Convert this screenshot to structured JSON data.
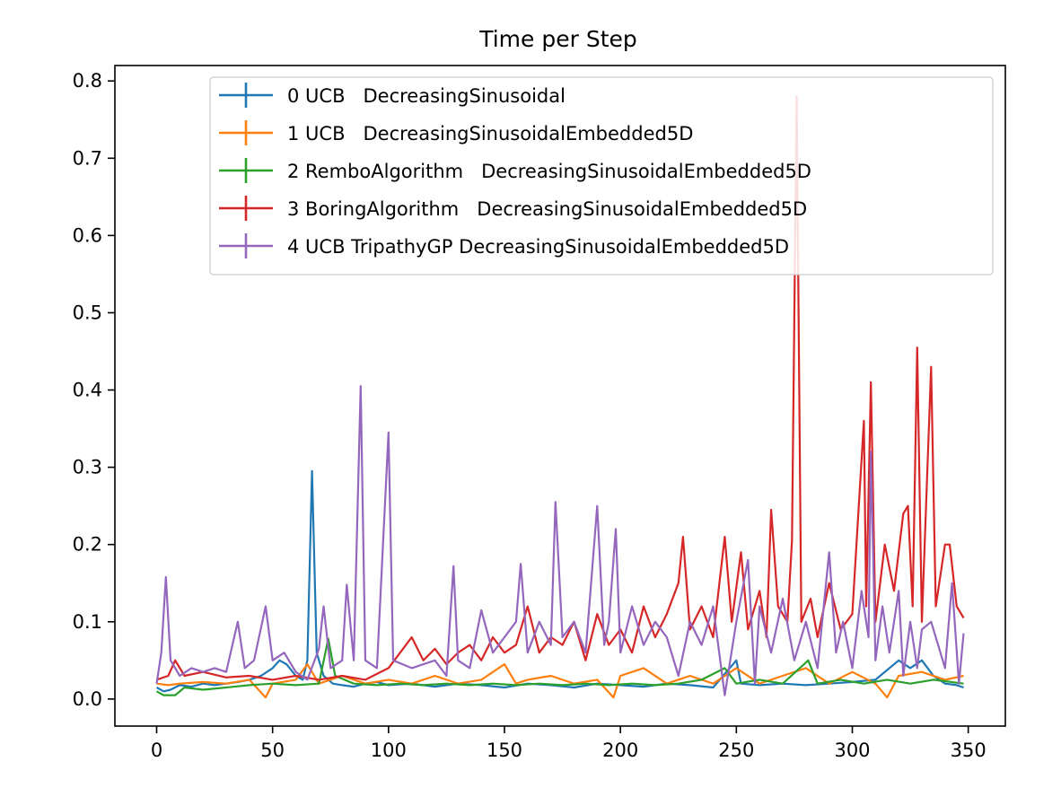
{
  "chart_data": {
    "type": "line",
    "title": "Time per Step",
    "xlabel": "",
    "ylabel": "",
    "xlim": [
      -18,
      366
    ],
    "ylim": [
      -0.035,
      0.82
    ],
    "xticks": [
      "0",
      "50",
      "100",
      "150",
      "200",
      "250",
      "300",
      "350"
    ],
    "xtick_values": [
      0,
      50,
      100,
      150,
      200,
      250,
      300,
      350
    ],
    "yticks": [
      "0.0",
      "0.1",
      "0.2",
      "0.3",
      "0.4",
      "0.5",
      "0.6",
      "0.7",
      "0.8"
    ],
    "ytick_values": [
      0.0,
      0.1,
      0.2,
      0.3,
      0.4,
      0.5,
      0.6,
      0.7,
      0.8
    ],
    "grid": false,
    "legend_position": "top-center",
    "series": [
      {
        "name": "0 UCB   DecreasingSinusoidal",
        "color": "#1f77b4",
        "points": [
          [
            0,
            0.015
          ],
          [
            3,
            0.01
          ],
          [
            6,
            0.012
          ],
          [
            10,
            0.018
          ],
          [
            15,
            0.016
          ],
          [
            20,
            0.02
          ],
          [
            25,
            0.018
          ],
          [
            30,
            0.02
          ],
          [
            35,
            0.022
          ],
          [
            40,
            0.025
          ],
          [
            45,
            0.03
          ],
          [
            50,
            0.04
          ],
          [
            53,
            0.05
          ],
          [
            56,
            0.045
          ],
          [
            60,
            0.03
          ],
          [
            63,
            0.025
          ],
          [
            65,
            0.05
          ],
          [
            67,
            0.295
          ],
          [
            69,
            0.06
          ],
          [
            72,
            0.03
          ],
          [
            76,
            0.02
          ],
          [
            80,
            0.018
          ],
          [
            85,
            0.016
          ],
          [
            90,
            0.02
          ],
          [
            95,
            0.022
          ],
          [
            100,
            0.018
          ],
          [
            110,
            0.02
          ],
          [
            120,
            0.016
          ],
          [
            130,
            0.02
          ],
          [
            140,
            0.018
          ],
          [
            150,
            0.015
          ],
          [
            160,
            0.02
          ],
          [
            170,
            0.018
          ],
          [
            180,
            0.015
          ],
          [
            190,
            0.02
          ],
          [
            200,
            0.018
          ],
          [
            210,
            0.016
          ],
          [
            220,
            0.02
          ],
          [
            230,
            0.018
          ],
          [
            240,
            0.015
          ],
          [
            250,
            0.05
          ],
          [
            252,
            0.02
          ],
          [
            260,
            0.018
          ],
          [
            270,
            0.02
          ],
          [
            280,
            0.018
          ],
          [
            290,
            0.02
          ],
          [
            300,
            0.022
          ],
          [
            310,
            0.025
          ],
          [
            320,
            0.05
          ],
          [
            325,
            0.04
          ],
          [
            330,
            0.05
          ],
          [
            335,
            0.03
          ],
          [
            340,
            0.02
          ],
          [
            345,
            0.018
          ],
          [
            348,
            0.015
          ]
        ]
      },
      {
        "name": "1 UCB   DecreasingSinusoidalEmbedded5D",
        "color": "#ff7f0e",
        "points": [
          [
            0,
            0.02
          ],
          [
            5,
            0.018
          ],
          [
            10,
            0.02
          ],
          [
            20,
            0.022
          ],
          [
            30,
            0.02
          ],
          [
            40,
            0.025
          ],
          [
            47,
            0.002
          ],
          [
            50,
            0.02
          ],
          [
            60,
            0.025
          ],
          [
            65,
            0.045
          ],
          [
            70,
            0.02
          ],
          [
            80,
            0.03
          ],
          [
            90,
            0.02
          ],
          [
            100,
            0.025
          ],
          [
            110,
            0.02
          ],
          [
            120,
            0.03
          ],
          [
            130,
            0.02
          ],
          [
            140,
            0.025
          ],
          [
            150,
            0.045
          ],
          [
            155,
            0.02
          ],
          [
            160,
            0.025
          ],
          [
            170,
            0.03
          ],
          [
            180,
            0.02
          ],
          [
            190,
            0.025
          ],
          [
            197,
            0.002
          ],
          [
            200,
            0.03
          ],
          [
            210,
            0.04
          ],
          [
            220,
            0.02
          ],
          [
            230,
            0.03
          ],
          [
            240,
            0.02
          ],
          [
            250,
            0.04
          ],
          [
            260,
            0.02
          ],
          [
            270,
            0.03
          ],
          [
            280,
            0.04
          ],
          [
            290,
            0.02
          ],
          [
            300,
            0.035
          ],
          [
            310,
            0.02
          ],
          [
            315,
            0.002
          ],
          [
            320,
            0.03
          ],
          [
            330,
            0.035
          ],
          [
            340,
            0.025
          ],
          [
            348,
            0.03
          ]
        ]
      },
      {
        "name": "2 RemboAlgorithm   DecreasingSinusoidalEmbedded5D",
        "color": "#2ca02c",
        "points": [
          [
            0,
            0.01
          ],
          [
            3,
            0.005
          ],
          [
            8,
            0.005
          ],
          [
            12,
            0.015
          ],
          [
            20,
            0.012
          ],
          [
            30,
            0.015
          ],
          [
            40,
            0.018
          ],
          [
            50,
            0.02
          ],
          [
            60,
            0.018
          ],
          [
            70,
            0.02
          ],
          [
            74,
            0.078
          ],
          [
            77,
            0.03
          ],
          [
            85,
            0.02
          ],
          [
            95,
            0.018
          ],
          [
            105,
            0.02
          ],
          [
            115,
            0.018
          ],
          [
            125,
            0.02
          ],
          [
            135,
            0.018
          ],
          [
            145,
            0.02
          ],
          [
            155,
            0.018
          ],
          [
            165,
            0.02
          ],
          [
            175,
            0.018
          ],
          [
            185,
            0.02
          ],
          [
            195,
            0.018
          ],
          [
            205,
            0.02
          ],
          [
            215,
            0.018
          ],
          [
            225,
            0.02
          ],
          [
            235,
            0.025
          ],
          [
            245,
            0.04
          ],
          [
            250,
            0.02
          ],
          [
            260,
            0.025
          ],
          [
            270,
            0.02
          ],
          [
            281,
            0.05
          ],
          [
            285,
            0.02
          ],
          [
            295,
            0.025
          ],
          [
            305,
            0.02
          ],
          [
            315,
            0.025
          ],
          [
            325,
            0.02
          ],
          [
            335,
            0.025
          ],
          [
            348,
            0.02
          ]
        ]
      },
      {
        "name": "3 BoringAlgorithm   DecreasingSinusoidalEmbedded5D",
        "color": "#d62728",
        "points": [
          [
            0,
            0.025
          ],
          [
            5,
            0.03
          ],
          [
            8,
            0.05
          ],
          [
            12,
            0.03
          ],
          [
            20,
            0.035
          ],
          [
            30,
            0.028
          ],
          [
            40,
            0.03
          ],
          [
            50,
            0.025
          ],
          [
            60,
            0.03
          ],
          [
            70,
            0.025
          ],
          [
            80,
            0.03
          ],
          [
            90,
            0.025
          ],
          [
            100,
            0.04
          ],
          [
            105,
            0.06
          ],
          [
            110,
            0.08
          ],
          [
            115,
            0.05
          ],
          [
            120,
            0.065
          ],
          [
            125,
            0.045
          ],
          [
            130,
            0.06
          ],
          [
            135,
            0.07
          ],
          [
            140,
            0.05
          ],
          [
            145,
            0.08
          ],
          [
            150,
            0.06
          ],
          [
            155,
            0.07
          ],
          [
            160,
            0.12
          ],
          [
            165,
            0.06
          ],
          [
            170,
            0.08
          ],
          [
            175,
            0.07
          ],
          [
            180,
            0.1
          ],
          [
            185,
            0.05
          ],
          [
            190,
            0.11
          ],
          [
            195,
            0.07
          ],
          [
            200,
            0.09
          ],
          [
            205,
            0.06
          ],
          [
            210,
            0.12
          ],
          [
            215,
            0.08
          ],
          [
            220,
            0.11
          ],
          [
            225,
            0.15
          ],
          [
            227,
            0.21
          ],
          [
            230,
            0.09
          ],
          [
            235,
            0.12
          ],
          [
            240,
            0.08
          ],
          [
            245,
            0.21
          ],
          [
            248,
            0.1
          ],
          [
            252,
            0.19
          ],
          [
            255,
            0.09
          ],
          [
            260,
            0.14
          ],
          [
            263,
            0.08
          ],
          [
            265,
            0.245
          ],
          [
            268,
            0.12
          ],
          [
            272,
            0.1
          ],
          [
            274,
            0.205
          ],
          [
            276,
            0.78
          ],
          [
            278,
            0.1
          ],
          [
            282,
            0.13
          ],
          [
            285,
            0.08
          ],
          [
            290,
            0.15
          ],
          [
            295,
            0.09
          ],
          [
            300,
            0.11
          ],
          [
            305,
            0.36
          ],
          [
            306,
            0.12
          ],
          [
            308,
            0.41
          ],
          [
            310,
            0.1
          ],
          [
            314,
            0.2
          ],
          [
            318,
            0.14
          ],
          [
            322,
            0.24
          ],
          [
            324,
            0.25
          ],
          [
            326,
            0.12
          ],
          [
            328,
            0.455
          ],
          [
            330,
            0.1
          ],
          [
            334,
            0.43
          ],
          [
            336,
            0.12
          ],
          [
            340,
            0.2
          ],
          [
            342,
            0.2
          ],
          [
            345,
            0.12
          ],
          [
            348,
            0.105
          ]
        ]
      },
      {
        "name": "4 UCB TripathyGP DecreasingSinusoidalEmbedded5D",
        "color": "#9467bd",
        "points": [
          [
            0,
            0.02
          ],
          [
            2,
            0.06
          ],
          [
            4,
            0.158
          ],
          [
            6,
            0.05
          ],
          [
            10,
            0.03
          ],
          [
            15,
            0.04
          ],
          [
            20,
            0.035
          ],
          [
            25,
            0.04
          ],
          [
            30,
            0.035
          ],
          [
            35,
            0.1
          ],
          [
            38,
            0.04
          ],
          [
            42,
            0.05
          ],
          [
            47,
            0.12
          ],
          [
            50,
            0.05
          ],
          [
            55,
            0.06
          ],
          [
            60,
            0.035
          ],
          [
            65,
            0.025
          ],
          [
            70,
            0.065
          ],
          [
            72,
            0.12
          ],
          [
            75,
            0.04
          ],
          [
            80,
            0.05
          ],
          [
            82,
            0.148
          ],
          [
            85,
            0.05
          ],
          [
            88,
            0.405
          ],
          [
            90,
            0.05
          ],
          [
            95,
            0.04
          ],
          [
            100,
            0.345
          ],
          [
            102,
            0.05
          ],
          [
            110,
            0.04
          ],
          [
            120,
            0.05
          ],
          [
            125,
            0.03
          ],
          [
            128,
            0.172
          ],
          [
            130,
            0.05
          ],
          [
            135,
            0.04
          ],
          [
            140,
            0.115
          ],
          [
            145,
            0.06
          ],
          [
            150,
            0.08
          ],
          [
            155,
            0.1
          ],
          [
            157,
            0.175
          ],
          [
            160,
            0.06
          ],
          [
            165,
            0.1
          ],
          [
            170,
            0.07
          ],
          [
            172,
            0.255
          ],
          [
            175,
            0.08
          ],
          [
            180,
            0.1
          ],
          [
            185,
            0.06
          ],
          [
            190,
            0.25
          ],
          [
            193,
            0.07
          ],
          [
            195,
            0.1
          ],
          [
            198,
            0.22
          ],
          [
            200,
            0.06
          ],
          [
            205,
            0.12
          ],
          [
            210,
            0.07
          ],
          [
            215,
            0.1
          ],
          [
            220,
            0.08
          ],
          [
            225,
            0.03
          ],
          [
            230,
            0.1
          ],
          [
            235,
            0.07
          ],
          [
            240,
            0.12
          ],
          [
            245,
            0.005
          ],
          [
            250,
            0.1
          ],
          [
            255,
            0.18
          ],
          [
            258,
            0.02
          ],
          [
            260,
            0.12
          ],
          [
            265,
            0.06
          ],
          [
            270,
            0.13
          ],
          [
            275,
            0.05
          ],
          [
            280,
            0.1
          ],
          [
            285,
            0.04
          ],
          [
            290,
            0.19
          ],
          [
            293,
            0.06
          ],
          [
            296,
            0.1
          ],
          [
            300,
            0.04
          ],
          [
            304,
            0.14
          ],
          [
            307,
            0.08
          ],
          [
            308,
            0.32
          ],
          [
            310,
            0.05
          ],
          [
            313,
            0.12
          ],
          [
            316,
            0.06
          ],
          [
            320,
            0.14
          ],
          [
            322,
            0.03
          ],
          [
            325,
            0.1
          ],
          [
            328,
            0.04
          ],
          [
            330,
            0.09
          ],
          [
            334,
            0.1
          ],
          [
            337,
            0.07
          ],
          [
            340,
            0.04
          ],
          [
            343,
            0.15
          ],
          [
            346,
            0.02
          ],
          [
            348,
            0.085
          ]
        ]
      }
    ]
  }
}
